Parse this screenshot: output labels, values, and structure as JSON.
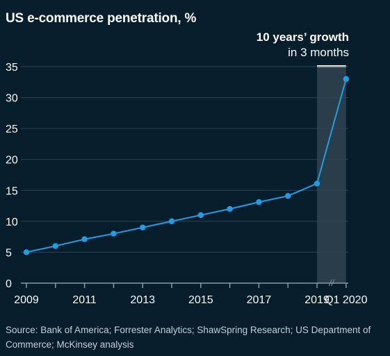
{
  "title": "US e-commerce penetration, %",
  "annotation": {
    "line1": "10 years’ growth",
    "line2": "in 3 months"
  },
  "source": "Source: Bank of America; Forrester Analytics; ShawSpring Research; US Department of Commerce; McKinsey analysis",
  "colors": {
    "background": "#061d2c",
    "line": "#1e9fe3",
    "grid": "#2f4556",
    "highlight": "#2a3d4b",
    "text": "#ffffff"
  },
  "chart_data": {
    "type": "line",
    "title": "US e-commerce penetration, %",
    "x_ticks": [
      "2009",
      "2011",
      "2013",
      "2015",
      "2017",
      "2019",
      "Q1 2020"
    ],
    "y_ticks": [
      0,
      5,
      10,
      15,
      20,
      25,
      30,
      35
    ],
    "ylim": [
      0,
      35
    ],
    "grid": true,
    "axis_break_symbol": "//",
    "highlight_range": [
      "2019",
      "Q1 2020"
    ],
    "series": [
      {
        "x": [
          "2009",
          "2010",
          "2011",
          "2012",
          "2013",
          "2014",
          "2015",
          "2016",
          "2017",
          "2018",
          "2019",
          "Q1 2020"
        ],
        "values": [
          5.0,
          6.0,
          7.1,
          8.0,
          9.0,
          10.0,
          11.0,
          12.0,
          13.1,
          14.1,
          16.1,
          33.0
        ]
      }
    ]
  }
}
